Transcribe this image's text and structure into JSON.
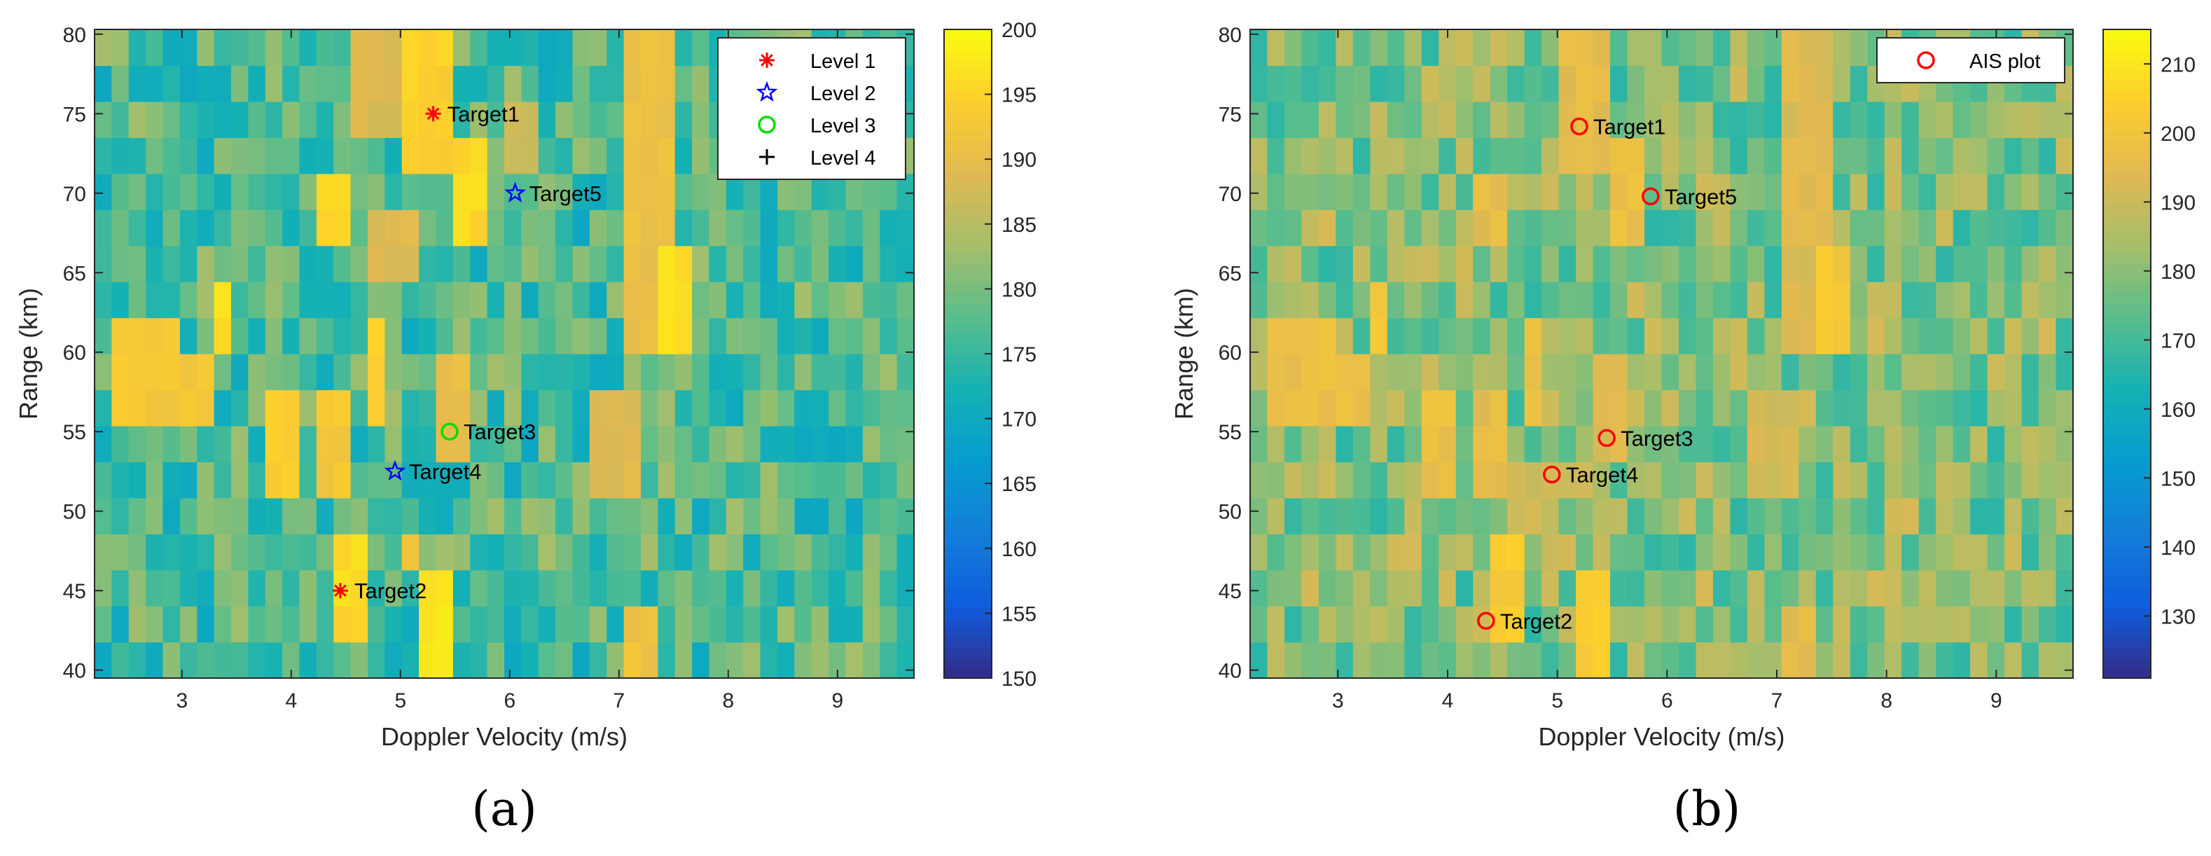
{
  "figure": {
    "panels": [
      {
        "id": "a",
        "sublabel": "(a)",
        "chart_data": {
          "type": "heatmap",
          "xlabel": "Doppler Velocity (m/s)",
          "ylabel": "Range (km)",
          "xlim": [
            2.2,
            9.7
          ],
          "ylim": [
            39.5,
            80.3
          ],
          "xticks": [
            3,
            4,
            5,
            6,
            7,
            8,
            9
          ],
          "yticks": [
            40,
            45,
            50,
            55,
            60,
            65,
            70,
            75,
            80
          ],
          "colorbar": {
            "min": 150,
            "max": 200,
            "ticks": [
              150,
              155,
              160,
              165,
              170,
              175,
              180,
              185,
              190,
              195,
              200
            ]
          },
          "cell_grid": {
            "columns": 48,
            "rows": 18
          },
          "hotspots": [
            {
              "x0": 5.0,
              "x1": 5.5,
              "y0": 71.5,
              "y1": 79.5,
              "value": 196
            },
            {
              "x0": 4.5,
              "x1": 5.0,
              "y0": 74.0,
              "y1": 79.5,
              "value": 190
            },
            {
              "x0": 5.5,
              "x1": 5.8,
              "y0": 66.5,
              "y1": 74.0,
              "value": 197
            },
            {
              "x0": 4.2,
              "x1": 4.5,
              "y0": 66.5,
              "y1": 71.5,
              "value": 196
            },
            {
              "x0": 4.7,
              "x1": 5.1,
              "y0": 64.0,
              "y1": 69.0,
              "value": 190
            },
            {
              "x0": 2.4,
              "x1": 3.0,
              "y0": 59.0,
              "y1": 61.5,
              "value": 194
            },
            {
              "x0": 2.4,
              "x1": 3.3,
              "y0": 56.5,
              "y1": 59.0,
              "value": 194
            },
            {
              "x0": 3.3,
              "x1": 3.5,
              "y0": 59.0,
              "y1": 64.0,
              "value": 197
            },
            {
              "x0": 4.7,
              "x1": 4.9,
              "y0": 56.5,
              "y1": 61.5,
              "value": 196
            },
            {
              "x0": 5.3,
              "x1": 5.6,
              "y0": 54.0,
              "y1": 59.0,
              "value": 192
            },
            {
              "x0": 3.7,
              "x1": 4.0,
              "y0": 51.5,
              "y1": 56.5,
              "value": 196
            },
            {
              "x0": 4.3,
              "x1": 4.5,
              "y0": 51.5,
              "y1": 56.5,
              "value": 194
            },
            {
              "x0": 4.4,
              "x1": 4.7,
              "y0": 41.0,
              "y1": 49.0,
              "value": 197
            },
            {
              "x0": 5.2,
              "x1": 5.5,
              "y0": 39.5,
              "y1": 46.5,
              "value": 199
            },
            {
              "x0": 5.0,
              "x1": 5.2,
              "y0": 46.5,
              "y1": 49.0,
              "value": 192
            },
            {
              "x0": 7.0,
              "x1": 7.5,
              "y0": 59.0,
              "y1": 79.5,
              "value": 192
            },
            {
              "x0": 7.3,
              "x1": 7.6,
              "y0": 59.0,
              "y1": 66.5,
              "value": 198
            },
            {
              "x0": 6.8,
              "x1": 7.2,
              "y0": 51.5,
              "y1": 56.5,
              "value": 190
            },
            {
              "x0": 7.1,
              "x1": 7.3,
              "y0": 39.5,
              "y1": 44.0,
              "value": 193
            },
            {
              "x0": 6.0,
              "x1": 6.3,
              "y0": 71.5,
              "y1": 76.5,
              "value": 188
            }
          ],
          "markers": [
            {
              "label": "Target1",
              "x": 5.3,
              "y": 75.0,
              "level": "Level 1"
            },
            {
              "label": "Target2",
              "x": 4.45,
              "y": 45.0,
              "level": "Level 1"
            },
            {
              "label": "Target3",
              "x": 5.45,
              "y": 55.0,
              "level": "Level 3"
            },
            {
              "label": "Target4",
              "x": 4.95,
              "y": 52.5,
              "level": "Level 2"
            },
            {
              "label": "Target5",
              "x": 6.05,
              "y": 70.0,
              "level": "Level 2"
            }
          ],
          "legend": {
            "position": "top-right",
            "entries": [
              {
                "label": "Level 1",
                "symbol": "asterisk",
                "color": "#ff0000"
              },
              {
                "label": "Level 2",
                "symbol": "star",
                "color": "#0000ff"
              },
              {
                "label": "Level 3",
                "symbol": "circle",
                "color": "#00dd00"
              },
              {
                "label": "Level 4",
                "symbol": "plus",
                "color": "#000000"
              }
            ]
          }
        }
      },
      {
        "id": "b",
        "sublabel": "(b)",
        "chart_data": {
          "type": "heatmap",
          "xlabel": "Doppler Velocity (m/s)",
          "ylabel": "Range (km)",
          "xlim": [
            2.2,
            9.7
          ],
          "ylim": [
            39.5,
            80.3
          ],
          "xticks": [
            3,
            4,
            5,
            6,
            7,
            8,
            9
          ],
          "yticks": [
            40,
            45,
            50,
            55,
            60,
            65,
            70,
            75,
            80
          ],
          "colorbar": {
            "min": 121,
            "max": 215,
            "ticks": [
              130,
              140,
              150,
              160,
              170,
              180,
              190,
              200,
              210
            ]
          },
          "cell_grid": {
            "columns": 48,
            "rows": 18
          },
          "hotspots": [
            {
              "x0": 5.0,
              "x1": 5.5,
              "y0": 71.5,
              "y1": 79.5,
              "value": 198
            },
            {
              "x0": 5.5,
              "x1": 5.8,
              "y0": 66.5,
              "y1": 74.0,
              "value": 200
            },
            {
              "x0": 4.2,
              "x1": 4.5,
              "y0": 66.5,
              "y1": 71.5,
              "value": 198
            },
            {
              "x0": 2.4,
              "x1": 3.0,
              "y0": 59.0,
              "y1": 61.5,
              "value": 200
            },
            {
              "x0": 2.4,
              "x1": 3.3,
              "y0": 56.5,
              "y1": 59.0,
              "value": 200
            },
            {
              "x0": 3.3,
              "x1": 3.5,
              "y0": 59.0,
              "y1": 64.0,
              "value": 203
            },
            {
              "x0": 4.7,
              "x1": 4.9,
              "y0": 56.5,
              "y1": 61.5,
              "value": 200
            },
            {
              "x0": 5.3,
              "x1": 5.6,
              "y0": 54.0,
              "y1": 59.0,
              "value": 196
            },
            {
              "x0": 3.7,
              "x1": 4.0,
              "y0": 51.5,
              "y1": 56.5,
              "value": 200
            },
            {
              "x0": 4.3,
              "x1": 4.5,
              "y0": 51.5,
              "y1": 56.5,
              "value": 198
            },
            {
              "x0": 4.4,
              "x1": 4.7,
              "y0": 41.0,
              "y1": 49.0,
              "value": 205
            },
            {
              "x0": 5.2,
              "x1": 5.5,
              "y0": 39.5,
              "y1": 46.5,
              "value": 206
            },
            {
              "x0": 7.0,
              "x1": 7.5,
              "y0": 59.0,
              "y1": 79.5,
              "value": 196
            },
            {
              "x0": 7.3,
              "x1": 7.6,
              "y0": 59.0,
              "y1": 66.5,
              "value": 204
            },
            {
              "x0": 6.8,
              "x1": 7.2,
              "y0": 51.5,
              "y1": 56.5,
              "value": 194
            },
            {
              "x0": 7.1,
              "x1": 7.3,
              "y0": 39.5,
              "y1": 44.0,
              "value": 198
            }
          ],
          "markers": [
            {
              "label": "Target1",
              "x": 5.2,
              "y": 74.2
            },
            {
              "label": "Target2",
              "x": 4.35,
              "y": 43.1
            },
            {
              "label": "Target3",
              "x": 5.45,
              "y": 54.6
            },
            {
              "label": "Target4",
              "x": 4.95,
              "y": 52.3
            },
            {
              "label": "Target5",
              "x": 5.85,
              "y": 69.8
            }
          ],
          "legend": {
            "position": "top-right",
            "entries": [
              {
                "label": "AIS plot",
                "symbol": "circle",
                "color": "#ff0000"
              }
            ]
          }
        }
      }
    ]
  }
}
